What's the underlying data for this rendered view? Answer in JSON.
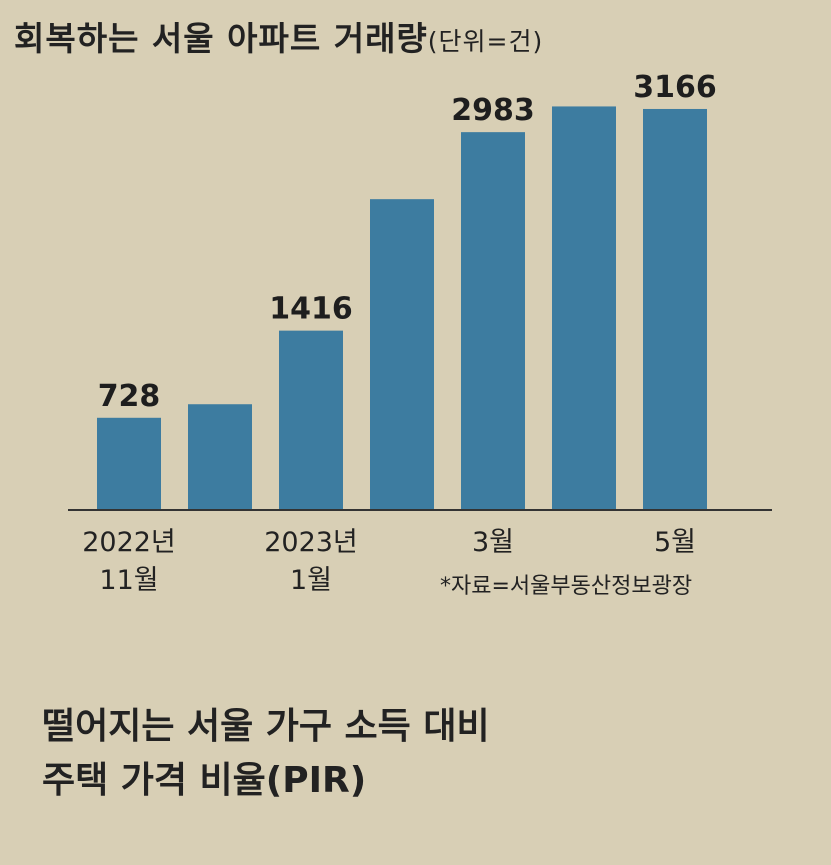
{
  "chart_data": {
    "type": "bar",
    "title": "회복하는 서울 아파트 거래량",
    "unit": "(단위=건)",
    "categories": [
      "2022년\n11월",
      null,
      "2023년\n1월",
      null,
      "3월",
      null,
      "5월"
    ],
    "values": [
      728,
      835,
      1416,
      2454,
      2983,
      3186,
      3166
    ],
    "value_labels": [
      "728",
      null,
      "1416",
      null,
      "2983",
      null,
      "3166"
    ],
    "color": "#3d7ca0",
    "ylim": [
      0,
      3300
    ],
    "source": "*자료=서울부동산정보광장"
  },
  "next_section_title": "떨어지는 서울 가구 소득 대비\n주택 가격 비율(PIR)"
}
